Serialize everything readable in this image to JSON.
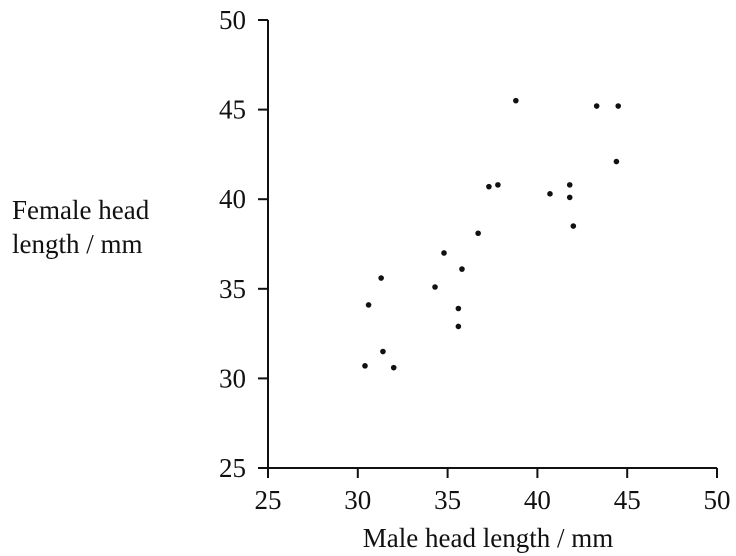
{
  "chart_data": {
    "type": "scatter",
    "xlabel": "Male head length / mm",
    "ylabel_lines": [
      "Female head",
      "length / mm"
    ],
    "xlim": [
      25,
      50
    ],
    "ylim": [
      25,
      50
    ],
    "xticks": [
      25,
      30,
      35,
      40,
      45,
      50
    ],
    "yticks": [
      25,
      30,
      35,
      40,
      45,
      50
    ],
    "grid": false,
    "points": [
      {
        "x": 30.4,
        "y": 30.7
      },
      {
        "x": 30.6,
        "y": 34.1
      },
      {
        "x": 31.3,
        "y": 35.6
      },
      {
        "x": 31.4,
        "y": 31.5
      },
      {
        "x": 32.0,
        "y": 30.6
      },
      {
        "x": 34.3,
        "y": 35.1
      },
      {
        "x": 34.8,
        "y": 37.0
      },
      {
        "x": 35.6,
        "y": 33.9
      },
      {
        "x": 35.6,
        "y": 32.9
      },
      {
        "x": 35.8,
        "y": 36.1
      },
      {
        "x": 36.7,
        "y": 38.1
      },
      {
        "x": 37.3,
        "y": 40.7
      },
      {
        "x": 37.8,
        "y": 40.8
      },
      {
        "x": 38.8,
        "y": 45.5
      },
      {
        "x": 40.7,
        "y": 40.3
      },
      {
        "x": 41.8,
        "y": 40.8
      },
      {
        "x": 41.8,
        "y": 40.1
      },
      {
        "x": 42.0,
        "y": 38.5
      },
      {
        "x": 43.3,
        "y": 45.2
      },
      {
        "x": 44.4,
        "y": 42.1
      },
      {
        "x": 44.5,
        "y": 45.2
      }
    ]
  }
}
